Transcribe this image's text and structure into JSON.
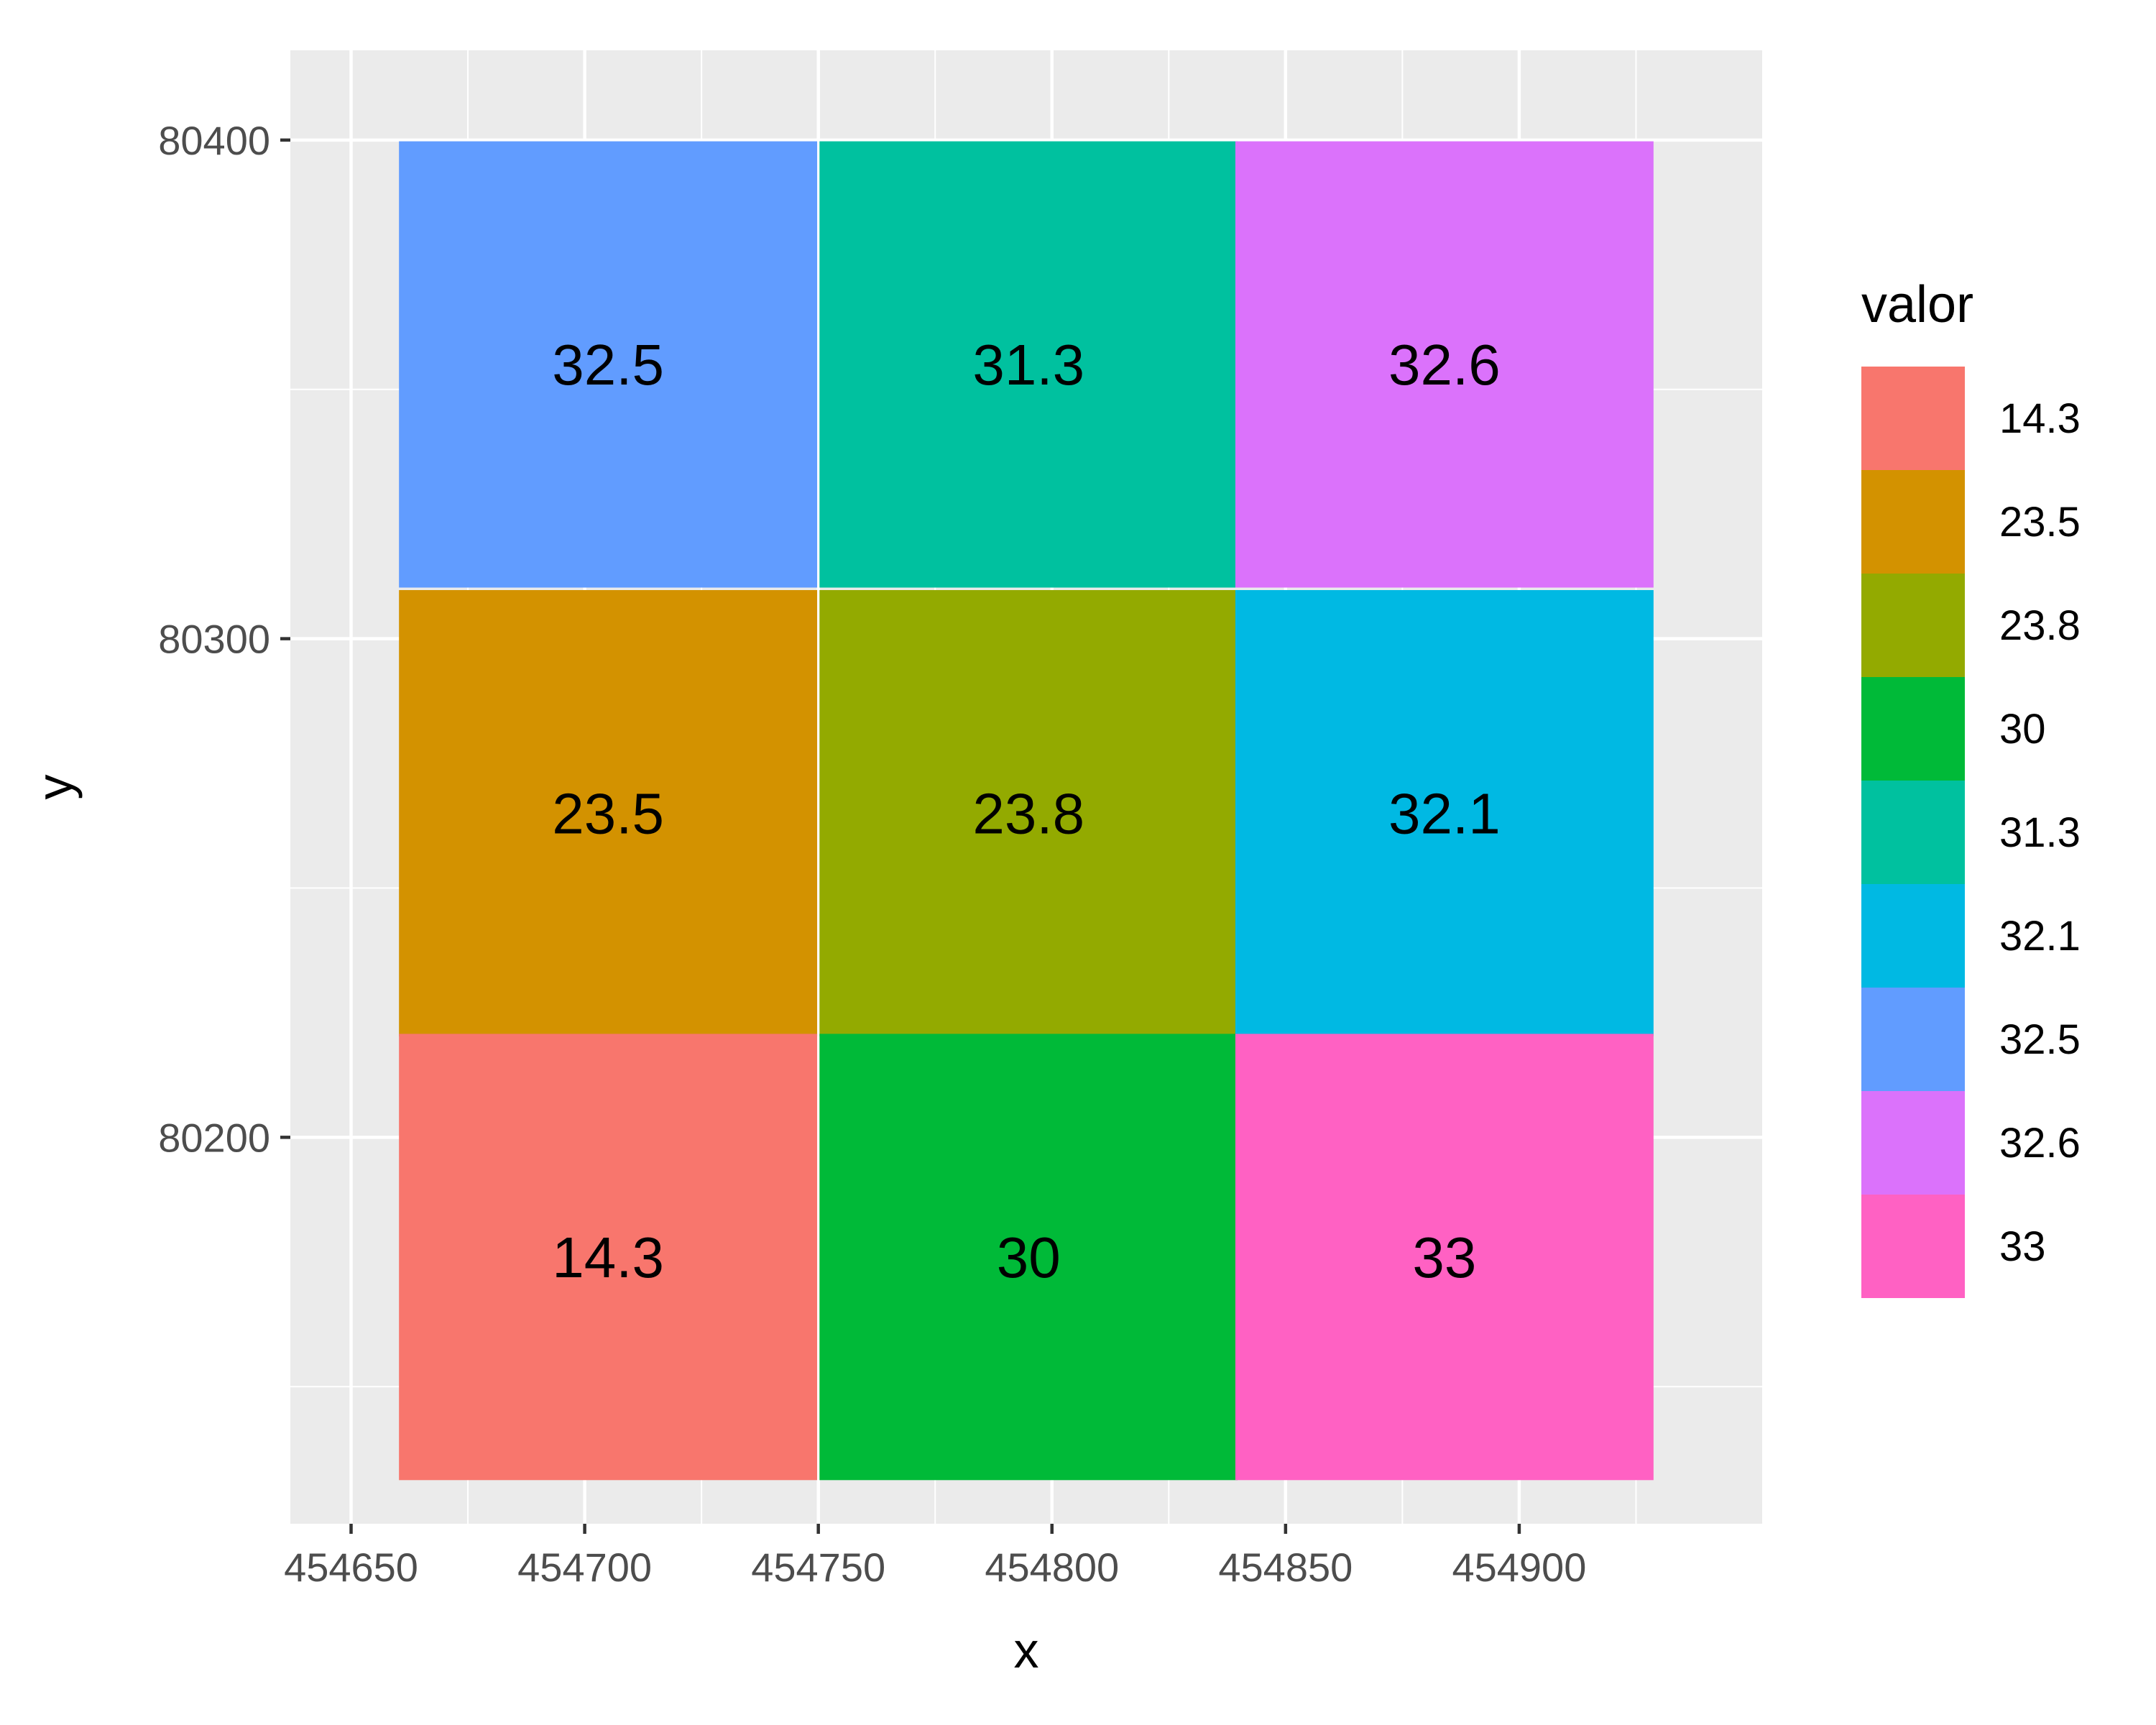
{
  "chart_data": {
    "type": "heatmap",
    "xlabel": "x",
    "ylabel": "y",
    "x_ticks": [
      454650,
      454700,
      454750,
      454800,
      454850,
      454900
    ],
    "y_ticks": [
      80200,
      80300,
      80400
    ],
    "xlim": [
      454637,
      454952
    ],
    "ylim": [
      80122.5,
      80418
    ],
    "cell_width": 89.5,
    "cell_height": 89.5,
    "cells": [
      {
        "x": 454705,
        "y": 80355,
        "value": "32.5"
      },
      {
        "x": 454795,
        "y": 80355,
        "value": "31.3"
      },
      {
        "x": 454884,
        "y": 80355,
        "value": "32.6"
      },
      {
        "x": 454705,
        "y": 80265,
        "value": "23.5"
      },
      {
        "x": 454795,
        "y": 80265,
        "value": "23.8"
      },
      {
        "x": 454884,
        "y": 80265,
        "value": "32.1"
      },
      {
        "x": 454705,
        "y": 80176,
        "value": "14.3"
      },
      {
        "x": 454795,
        "y": 80176,
        "value": "30"
      },
      {
        "x": 454884,
        "y": 80176,
        "value": "33"
      }
    ],
    "legend": {
      "title": "valor",
      "placement": "right",
      "entries": [
        {
          "label": "14.3",
          "color": "#F8766D"
        },
        {
          "label": "23.5",
          "color": "#D39200"
        },
        {
          "label": "23.8",
          "color": "#93AA00"
        },
        {
          "label": "30",
          "color": "#00BA38"
        },
        {
          "label": "31.3",
          "color": "#00C19F"
        },
        {
          "label": "32.1",
          "color": "#00B9E3"
        },
        {
          "label": "32.5",
          "color": "#619CFF"
        },
        {
          "label": "32.6",
          "color": "#DB72FB"
        },
        {
          "label": "33",
          "color": "#FF61C3"
        }
      ]
    },
    "grid": true,
    "panel_color": "#EBEBEB"
  }
}
